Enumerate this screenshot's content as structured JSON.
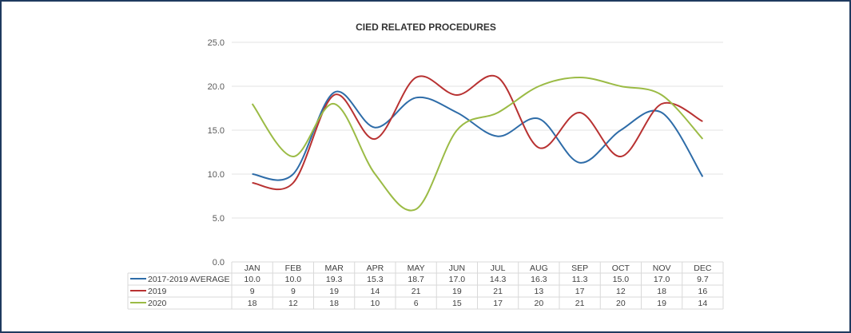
{
  "chart_data": {
    "type": "line",
    "title": "CIED RELATED PROCEDURES",
    "xlabel": "",
    "ylabel": "",
    "ylim": [
      0,
      25
    ],
    "yticks": [
      "0.0",
      "5.0",
      "10.0",
      "15.0",
      "20.0",
      "25.0"
    ],
    "grid": true,
    "legend": "data-table-left",
    "categories": [
      "JAN",
      "FEB",
      "MAR",
      "APR",
      "MAY",
      "JUN",
      "JUL",
      "AUG",
      "SEP",
      "OCT",
      "NOV",
      "DEC"
    ],
    "series": [
      {
        "name": "2017-2019 AVERAGE",
        "color": "#2e6ca8",
        "values": [
          10.0,
          10.0,
          19.3,
          15.3,
          18.7,
          17.0,
          14.3,
          16.3,
          11.3,
          15.0,
          17.0,
          9.7
        ],
        "labels": [
          "10.0",
          "10.0",
          "19.3",
          "15.3",
          "18.7",
          "17.0",
          "14.3",
          "16.3",
          "11.3",
          "15.0",
          "17.0",
          "9.7"
        ]
      },
      {
        "name": "2019",
        "color": "#b83232",
        "values": [
          9,
          9,
          19,
          14,
          21,
          19,
          21,
          13,
          17,
          12,
          18,
          16
        ],
        "labels": [
          "9",
          "9",
          "19",
          "14",
          "21",
          "19",
          "21",
          "13",
          "17",
          "12",
          "18",
          "16"
        ]
      },
      {
        "name": "2020",
        "color": "#9bbb45",
        "values": [
          18,
          12,
          18,
          10,
          6,
          15,
          17,
          20,
          21,
          20,
          19,
          14
        ],
        "labels": [
          "18",
          "12",
          "18",
          "10",
          "6",
          "15",
          "17",
          "20",
          "21",
          "20",
          "19",
          "14"
        ]
      }
    ]
  }
}
